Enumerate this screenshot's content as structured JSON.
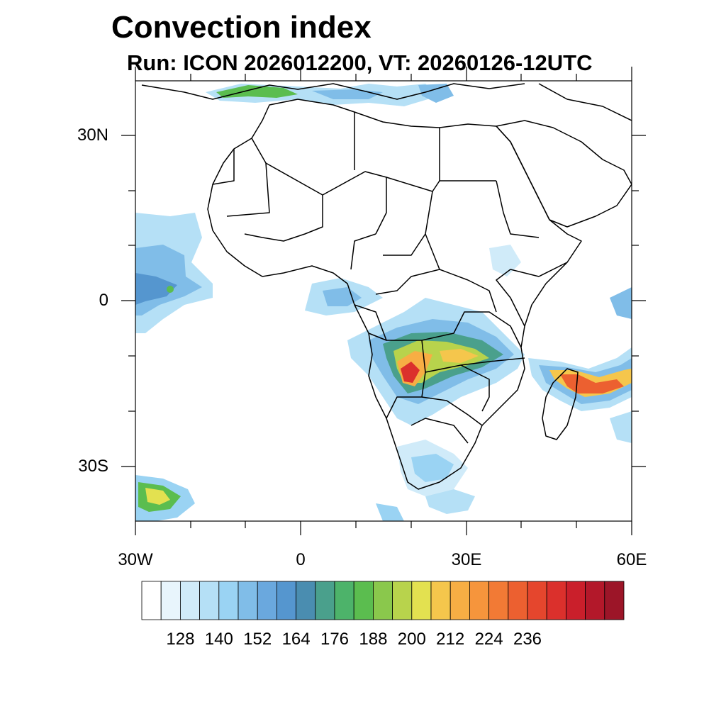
{
  "title": "Convection index",
  "subtitle": "Run: ICON 2026012200,  VT: 20260126-12UTC",
  "map": {
    "lon_range": [
      -30,
      60
    ],
    "lat_range": [
      -40,
      40
    ],
    "lat_labels": [
      {
        "lat": 30,
        "text": "30N"
      },
      {
        "lat": 0,
        "text": "0"
      },
      {
        "lat": -30,
        "text": "30S"
      }
    ],
    "lon_labels": [
      {
        "lon": -30,
        "text": "30W"
      },
      {
        "lon": 0,
        "text": "0"
      },
      {
        "lon": 30,
        "text": "30E"
      },
      {
        "lon": 60,
        "text": "60E"
      }
    ]
  },
  "colorbar": {
    "colors": [
      "#ffffff",
      "#e8f5fc",
      "#d0ebf9",
      "#b5e0f6",
      "#9ad3f3",
      "#80bde8",
      "#6aa8de",
      "#5596cf",
      "#4a8db0",
      "#4aa08c",
      "#4db36a",
      "#5bbd4f",
      "#8ac84c",
      "#b8d34c",
      "#e3e150",
      "#f5c64c",
      "#f7ae44",
      "#f6953c",
      "#f27a35",
      "#ec6030",
      "#e5462d",
      "#db302c",
      "#ca1f2b",
      "#b3182a",
      "#9c1528"
    ],
    "labels": [
      "128",
      "140",
      "152",
      "164",
      "176",
      "188",
      "200",
      "212",
      "224",
      "236"
    ]
  }
}
